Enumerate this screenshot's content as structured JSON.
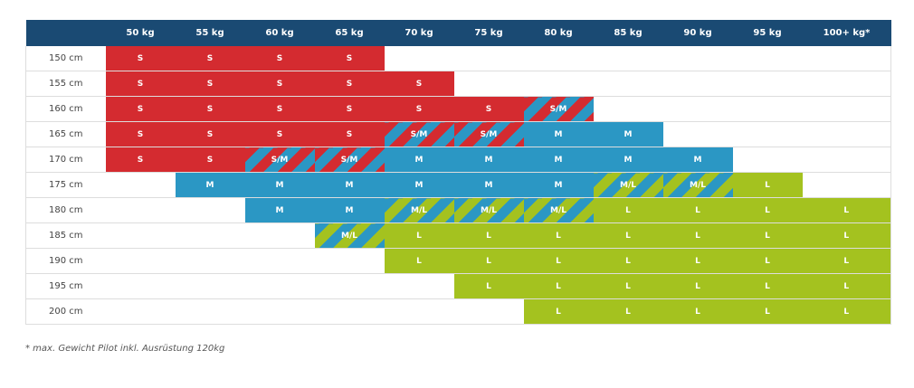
{
  "chart_data": {
    "type": "table",
    "columns": [
      "50 kg",
      "55 kg",
      "60 kg",
      "65 kg",
      "70 kg",
      "75 kg",
      "80 kg",
      "85 kg",
      "90 kg",
      "95 kg",
      "100+ kg*"
    ],
    "rows": [
      {
        "height": "150 cm",
        "sizes": [
          "S",
          "S",
          "S",
          "S",
          "",
          "",
          "",
          "",
          "",
          "",
          ""
        ]
      },
      {
        "height": "155 cm",
        "sizes": [
          "S",
          "S",
          "S",
          "S",
          "S",
          "",
          "",
          "",
          "",
          "",
          ""
        ]
      },
      {
        "height": "160 cm",
        "sizes": [
          "S",
          "S",
          "S",
          "S",
          "S",
          "S",
          "S/M",
          "",
          "",
          "",
          ""
        ]
      },
      {
        "height": "165 cm",
        "sizes": [
          "S",
          "S",
          "S",
          "S",
          "S/M",
          "S/M",
          "M",
          "M",
          "",
          "",
          ""
        ]
      },
      {
        "height": "170 cm",
        "sizes": [
          "S",
          "S",
          "S/M",
          "S/M",
          "M",
          "M",
          "M",
          "M",
          "M",
          "",
          ""
        ]
      },
      {
        "height": "175 cm",
        "sizes": [
          "",
          "M",
          "M",
          "M",
          "M",
          "M",
          "M",
          "M/L",
          "M/L",
          "L",
          ""
        ]
      },
      {
        "height": "180 cm",
        "sizes": [
          "",
          "",
          "M",
          "M",
          "M/L",
          "M/L",
          "M/L",
          "L",
          "L",
          "L",
          "L"
        ]
      },
      {
        "height": "185 cm",
        "sizes": [
          "",
          "",
          "",
          "M/L",
          "L",
          "L",
          "L",
          "L",
          "L",
          "L",
          "L"
        ]
      },
      {
        "height": "190 cm",
        "sizes": [
          "",
          "",
          "",
          "",
          "L",
          "L",
          "L",
          "L",
          "L",
          "L",
          "L"
        ]
      },
      {
        "height": "195 cm",
        "sizes": [
          "",
          "",
          "",
          "",
          "",
          "L",
          "L",
          "L",
          "L",
          "L",
          "L"
        ]
      },
      {
        "height": "200 cm",
        "sizes": [
          "",
          "",
          "",
          "",
          "",
          "",
          "L",
          "L",
          "L",
          "L",
          "L"
        ]
      }
    ],
    "colors": {
      "S": "#d42b30",
      "M": "#2b97c4",
      "L": "#a4c21f",
      "header": "#1a4a73"
    }
  },
  "footnote": "* max. Gewicht Pilot inkl. Ausrüstung 120kg"
}
